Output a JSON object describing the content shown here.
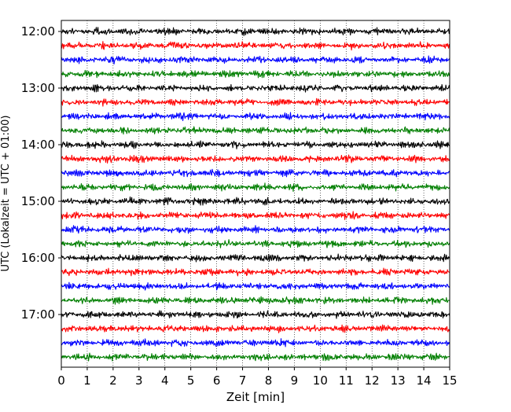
{
  "chart_data": {
    "type": "line",
    "title": "",
    "xlabel": "Zeit  [min]",
    "ylabel": "UTC (Lokalzeit = UTC + 01:00)",
    "xlim": [
      0,
      15
    ],
    "x_ticks": [
      0,
      1,
      2,
      3,
      4,
      5,
      6,
      7,
      8,
      9,
      10,
      11,
      12,
      13,
      14,
      15
    ],
    "y_tick_labels": [
      "12:00",
      "13:00",
      "14:00",
      "15:00",
      "16:00",
      "17:00"
    ],
    "grid": "vertical dotted lines at each minute",
    "trace_interval_min": 15,
    "first_trace": "12:00",
    "trace_count": 24,
    "series": [
      {
        "start": "12:00",
        "color": "#000000"
      },
      {
        "start": "12:15",
        "color": "#ff0000"
      },
      {
        "start": "12:30",
        "color": "#0000ff"
      },
      {
        "start": "12:45",
        "color": "#007f00"
      },
      {
        "start": "13:00",
        "color": "#000000"
      },
      {
        "start": "13:15",
        "color": "#ff0000"
      },
      {
        "start": "13:30",
        "color": "#0000ff"
      },
      {
        "start": "13:45",
        "color": "#007f00"
      },
      {
        "start": "14:00",
        "color": "#000000"
      },
      {
        "start": "14:15",
        "color": "#ff0000"
      },
      {
        "start": "14:30",
        "color": "#0000ff"
      },
      {
        "start": "14:45",
        "color": "#007f00"
      },
      {
        "start": "15:00",
        "color": "#000000"
      },
      {
        "start": "15:15",
        "color": "#ff0000"
      },
      {
        "start": "15:30",
        "color": "#0000ff"
      },
      {
        "start": "15:45",
        "color": "#007f00"
      },
      {
        "start": "16:00",
        "color": "#000000"
      },
      {
        "start": "16:15",
        "color": "#ff0000"
      },
      {
        "start": "16:30",
        "color": "#0000ff"
      },
      {
        "start": "16:45",
        "color": "#007f00"
      },
      {
        "start": "17:00",
        "color": "#000000"
      },
      {
        "start": "17:15",
        "color": "#ff0000"
      },
      {
        "start": "17:30",
        "color": "#0000ff"
      },
      {
        "start": "17:45",
        "color": "#007f00"
      }
    ]
  }
}
